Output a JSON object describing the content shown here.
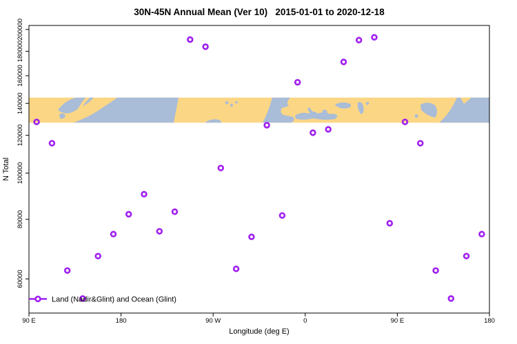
{
  "figure": {
    "background": "#ffffff",
    "text_color": "#000000"
  },
  "chart_data": {
    "type": "scatter",
    "title": "30N-45N Annual Mean (Ver 10)   2015-01-01 to 2020-12-18",
    "xlabel": "Longitude (deg E)",
    "ylabel": "N Total",
    "x_axis": {
      "range": [
        90,
        540
      ],
      "tick_values": [
        90,
        180,
        270,
        360,
        450,
        540
      ],
      "tick_labels": [
        "90 E",
        "180",
        "90 W",
        "0",
        "90 E",
        "180"
      ],
      "note": "longitude axis wraps eastward: 90E -> 180 -> 90W -> 0 -> 90E -> 180; axis coords >360 repeat the 90E-180 bins"
    },
    "y_axis": {
      "scale": "log10",
      "range": [
        50900,
        203900
      ],
      "tick_values": [
        60000,
        80000,
        100000,
        120000,
        140000,
        160000,
        180000,
        200000
      ],
      "tick_labels": [
        "60000",
        "80000",
        "100000",
        "120000",
        "140000",
        "160000",
        "180000",
        "200000"
      ]
    },
    "legend": {
      "position": "bottom-left",
      "entries": [
        {
          "label": "Land (Nadir&Glint) and Ocean (Glint)",
          "marker": "open-circle-on-line",
          "color": "#A020F0"
        }
      ]
    },
    "series": [
      {
        "name": "Land (Nadir&Glint) and Ocean (Glint)",
        "marker": "open-circle",
        "color": "#A020F0",
        "points": [
          [
            97.5,
            128000
          ],
          [
            112.5,
            115500
          ],
          [
            127.5,
            62500
          ],
          [
            142.5,
            54600
          ],
          [
            157.5,
            67000
          ],
          [
            172.5,
            74500
          ],
          [
            187.5,
            82000
          ],
          [
            202.5,
            90300
          ],
          [
            217.5,
            75500
          ],
          [
            232.5,
            83000
          ],
          [
            247.5,
            190500
          ],
          [
            262.5,
            184000
          ],
          [
            277.5,
            102500
          ],
          [
            292.5,
            63000
          ],
          [
            307.5,
            73500
          ],
          [
            322.5,
            126000
          ],
          [
            337.5,
            81500
          ],
          [
            352.5,
            155000
          ],
          [
            367.5,
            121500
          ],
          [
            382.5,
            123500
          ],
          [
            397.5,
            171000
          ],
          [
            412.5,
            190000
          ],
          [
            427.5,
            192500
          ],
          [
            442.5,
            78500
          ],
          [
            457.5,
            128000
          ],
          [
            472.5,
            115500
          ],
          [
            487.5,
            62500
          ],
          [
            502.5,
            54600
          ],
          [
            517.5,
            67000
          ],
          [
            532.5,
            74500
          ]
        ]
      }
    ],
    "map_band": {
      "description": "30N-45N latitude world-map strip drawn across the plot",
      "land_color": "#FBD685",
      "ocean_color": "#A9BCD8",
      "value_range": [
        127500,
        144000
      ]
    }
  }
}
